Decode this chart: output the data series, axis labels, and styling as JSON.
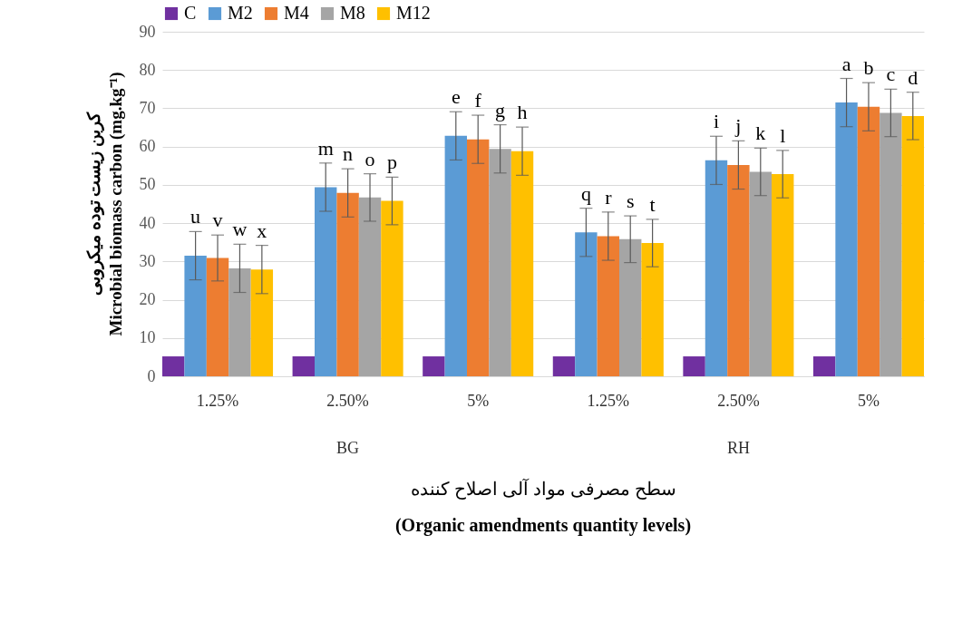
{
  "chart_data": {
    "type": "bar",
    "categories": [
      "1.25%",
      "2.50%",
      "5%",
      "1.25%",
      "2.50%",
      "5%"
    ],
    "series": [
      {
        "name": "C",
        "color": "#7030a0",
        "values": [
          5.2,
          5.2,
          5.2,
          5.2,
          5.2,
          5.2
        ]
      },
      {
        "name": "M2",
        "color": "#5b9bd5",
        "values": [
          31.5,
          49.4,
          62.8,
          37.6,
          56.4,
          71.5
        ],
        "errors": [
          6.3,
          6.3,
          6.3,
          6.3,
          6.3,
          6.3
        ],
        "value_labels": [
          "u",
          "m",
          "e",
          "q",
          "i",
          "a"
        ]
      },
      {
        "name": "M4",
        "color": "#ed7d31",
        "values": [
          30.9,
          47.9,
          61.9,
          36.6,
          55.2,
          70.4
        ],
        "errors": [
          6.0,
          6.3,
          6.3,
          6.3,
          6.3,
          6.3
        ],
        "value_labels": [
          "v",
          "n",
          "f",
          "r",
          "j",
          "b"
        ]
      },
      {
        "name": "M8",
        "color": "#a5a5a5",
        "values": [
          28.2,
          46.7,
          59.4,
          35.8,
          53.4,
          68.8
        ],
        "errors": [
          6.3,
          6.2,
          6.3,
          6.1,
          6.2,
          6.2
        ],
        "value_labels": [
          "w",
          "o",
          "g",
          "s",
          "k",
          "c"
        ]
      },
      {
        "name": "M12",
        "color": "#ffc000",
        "values": [
          27.9,
          45.8,
          58.8,
          34.8,
          52.8,
          68.0
        ],
        "errors": [
          6.3,
          6.2,
          6.3,
          6.2,
          6.2,
          6.2
        ],
        "value_labels": [
          "x",
          "p",
          "h",
          "t",
          "l",
          "d"
        ]
      }
    ],
    "annotations": [
      "BG",
      "RH"
    ],
    "xlabel": "سطح مصرفی مواد آلی اصلاح کننده\n(Organic amendments quantity levels)",
    "ylabel": "کربن زیست توده میکروبی\nMicrobial biomass carbon (mg.kg⁻¹)",
    "ylim": [
      0,
      90
    ],
    "yticks": [
      0,
      10,
      20,
      30,
      40,
      50,
      60,
      70,
      80,
      90
    ],
    "grid": "y",
    "legend": "top"
  }
}
